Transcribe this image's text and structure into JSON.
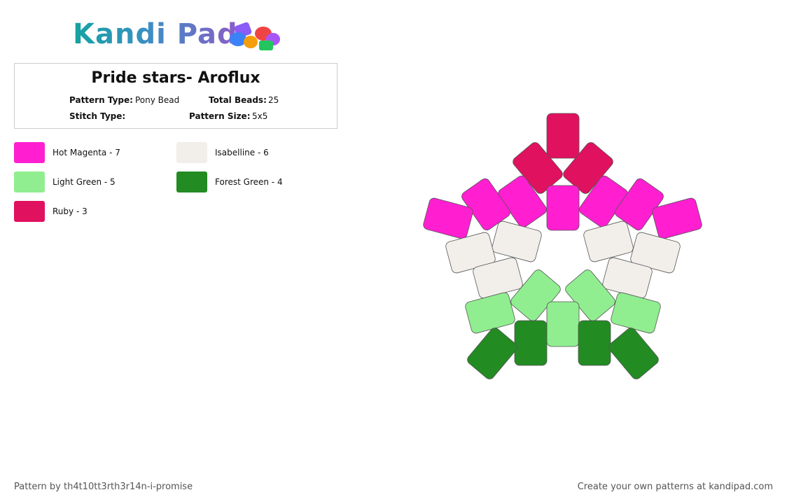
{
  "header": {
    "logo": "Kandi Pad"
  },
  "pattern": {
    "title": "Pride stars- Aroflux",
    "pattern_type_label": "Pattern Type:",
    "pattern_type": "Pony Bead",
    "total_beads_label": "Total Beads:",
    "total_beads": 25,
    "stitch_type_label": "Stitch Type:",
    "pattern_size_label": "Pattern Size:",
    "pattern_size": "5x5"
  },
  "legend": [
    {
      "label": "Hot Magenta - 7",
      "color": "#ff1fd1"
    },
    {
      "label": "Isabelline - 6",
      "color": "#f2efea"
    },
    {
      "label": "Light Green - 5",
      "color": "#90ee90"
    },
    {
      "label": "Forest Green - 4",
      "color": "#228b22"
    },
    {
      "label": "Ruby - 3",
      "color": "#e0115f"
    }
  ],
  "footer": {
    "credit": "Pattern by th4t10tt3rth3r14n-i-promise",
    "promo": "Create your own patterns at kandipad.com"
  }
}
